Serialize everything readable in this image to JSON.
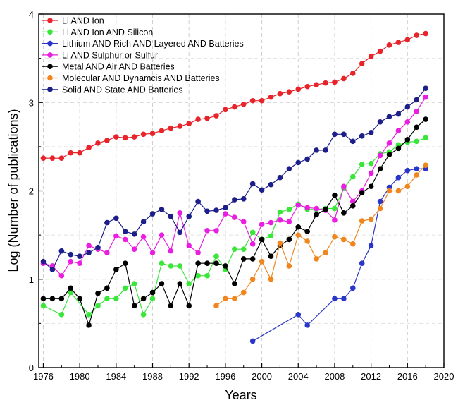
{
  "chart_data": {
    "type": "line",
    "title": "",
    "xlabel": "Years",
    "ylabel": "Log (Number of publications)",
    "xlim": [
      1975.5,
      2020
    ],
    "ylim": [
      0,
      4
    ],
    "x_ticks": [
      1976,
      1980,
      1984,
      1988,
      1992,
      1996,
      2000,
      2004,
      2008,
      2012,
      2016,
      2020
    ],
    "y_ticks": [
      0,
      1,
      2,
      3,
      4
    ],
    "grid": "dashed, both axes",
    "legend_position": "top-left",
    "series": [
      {
        "name": "Li AND Ion",
        "color": "#e8232a",
        "x": [
          1976,
          1977,
          1978,
          1979,
          1980,
          1981,
          1982,
          1983,
          1984,
          1985,
          1986,
          1987,
          1988,
          1989,
          1990,
          1991,
          1992,
          1993,
          1994,
          1995,
          1996,
          1997,
          1998,
          1999,
          2000,
          2001,
          2002,
          2003,
          2004,
          2005,
          2006,
          2007,
          2008,
          2009,
          2010,
          2011,
          2012,
          2013,
          2014,
          2015,
          2016,
          2017,
          2018
        ],
        "y": [
          2.37,
          2.37,
          2.37,
          2.43,
          2.43,
          2.49,
          2.54,
          2.57,
          2.61,
          2.6,
          2.61,
          2.64,
          2.65,
          2.68,
          2.71,
          2.73,
          2.76,
          2.81,
          2.82,
          2.85,
          2.92,
          2.95,
          2.98,
          3.02,
          3.02,
          3.06,
          3.1,
          3.12,
          3.15,
          3.18,
          3.2,
          3.22,
          3.23,
          3.27,
          3.33,
          3.44,
          3.52,
          3.58,
          3.65,
          3.68,
          3.71,
          3.76,
          3.78
        ]
      },
      {
        "name": "Li AND Ion AND Silicon",
        "color": "#39e639",
        "x": [
          1976,
          1978,
          1979,
          1981,
          1982,
          1983,
          1984,
          1985,
          1986,
          1987,
          1988,
          1989,
          1990,
          1991,
          1992,
          1993,
          1994,
          1995,
          1996,
          1997,
          1998,
          1999,
          2000,
          2001,
          2002,
          2003,
          2004,
          2005,
          2006,
          2007,
          2008,
          2009,
          2010,
          2011,
          2012,
          2013,
          2014,
          2015,
          2016,
          2017,
          2018
        ],
        "y": [
          0.7,
          0.6,
          0.85,
          0.6,
          0.7,
          0.78,
          0.78,
          0.9,
          0.95,
          0.6,
          0.78,
          1.18,
          1.15,
          1.15,
          0.95,
          1.04,
          1.04,
          1.26,
          1.11,
          1.34,
          1.34,
          1.53,
          1.45,
          1.49,
          1.76,
          1.79,
          1.85,
          1.79,
          1.79,
          1.8,
          1.8,
          2.03,
          2.16,
          2.3,
          2.31,
          2.42,
          2.44,
          2.52,
          2.55,
          2.56,
          2.6
        ]
      },
      {
        "name": "Lithium AND Rich AND Layered AND Batteries",
        "color": "#2a35c9",
        "x": [
          1999,
          2004,
          2005,
          2008,
          2009,
          2010,
          2011,
          2012,
          2013,
          2014,
          2015,
          2016,
          2017,
          2018
        ],
        "y": [
          0.3,
          0.6,
          0.48,
          0.78,
          0.78,
          0.9,
          1.18,
          1.38,
          1.88,
          2.04,
          2.15,
          2.23,
          2.25,
          2.25
        ]
      },
      {
        "name": "Li AND Sulphur or Sulfur",
        "color": "#ea1ee0",
        "x": [
          1976,
          1977,
          1978,
          1979,
          1980,
          1981,
          1982,
          1983,
          1984,
          1985,
          1986,
          1987,
          1988,
          1989,
          1990,
          1991,
          1992,
          1993,
          1994,
          1995,
          1996,
          1997,
          1998,
          1999,
          2000,
          2001,
          2002,
          2003,
          2004,
          2005,
          2006,
          2007,
          2008,
          2009,
          2010,
          2011,
          2012,
          2013,
          2014,
          2015,
          2016,
          2017,
          2018
        ],
        "y": [
          1.18,
          1.15,
          1.04,
          1.2,
          1.18,
          1.38,
          1.34,
          1.3,
          1.49,
          1.45,
          1.34,
          1.48,
          1.3,
          1.5,
          1.32,
          1.75,
          1.38,
          1.3,
          1.55,
          1.55,
          1.74,
          1.7,
          1.65,
          1.4,
          1.62,
          1.64,
          1.67,
          1.65,
          1.84,
          1.81,
          1.8,
          1.78,
          1.67,
          2.05,
          1.88,
          2.0,
          2.2,
          2.4,
          2.54,
          2.68,
          2.78,
          2.9,
          3.06
        ]
      },
      {
        "name": "Metal AND Air AND Batteries",
        "color": "#000000",
        "x": [
          1976,
          1977,
          1978,
          1979,
          1980,
          1981,
          1982,
          1983,
          1984,
          1985,
          1986,
          1987,
          1988,
          1989,
          1990,
          1991,
          1992,
          1993,
          1994,
          1995,
          1996,
          1997,
          1998,
          1999,
          2000,
          2001,
          2002,
          2003,
          2004,
          2005,
          2006,
          2007,
          2008,
          2009,
          2010,
          2011,
          2012,
          2013,
          2014,
          2015,
          2016,
          2017,
          2018
        ],
        "y": [
          0.78,
          0.78,
          0.78,
          0.9,
          0.78,
          0.48,
          0.84,
          0.9,
          1.11,
          1.18,
          0.7,
          0.78,
          0.85,
          0.95,
          0.7,
          0.95,
          0.7,
          1.18,
          1.18,
          1.18,
          1.15,
          0.95,
          1.23,
          1.23,
          1.45,
          1.26,
          1.38,
          1.45,
          1.59,
          1.54,
          1.73,
          1.79,
          1.95,
          1.75,
          1.83,
          1.98,
          2.05,
          2.25,
          2.41,
          2.48,
          2.58,
          2.72,
          2.81
        ]
      },
      {
        "name": "Molecular AND Dynamcis AND Batteries",
        "color": "#f0861e",
        "x": [
          1995,
          1996,
          1997,
          1998,
          1999,
          2000,
          2001,
          2002,
          2003,
          2004,
          2005,
          2006,
          2007,
          2008,
          2009,
          2010,
          2011,
          2012,
          2013,
          2014,
          2015,
          2016,
          2017,
          2018
        ],
        "y": [
          0.7,
          0.78,
          0.78,
          0.85,
          1.0,
          1.2,
          1.0,
          1.41,
          1.15,
          1.5,
          1.43,
          1.23,
          1.3,
          1.48,
          1.45,
          1.4,
          1.66,
          1.68,
          1.8,
          2.0,
          2.0,
          2.05,
          2.18,
          2.29
        ]
      },
      {
        "name": "Solid AND State AND Batteries",
        "color": "#1c1e8a",
        "x": [
          1976,
          1977,
          1978,
          1979,
          1980,
          1981,
          1982,
          1983,
          1984,
          1985,
          1986,
          1987,
          1988,
          1989,
          1990,
          1991,
          1992,
          1993,
          1994,
          1995,
          1996,
          1997,
          1998,
          1999,
          2000,
          2001,
          2002,
          2003,
          2004,
          2005,
          2006,
          2007,
          2008,
          2009,
          2010,
          2011,
          2012,
          2013,
          2014,
          2015,
          2016,
          2017,
          2018
        ],
        "y": [
          1.2,
          1.11,
          1.32,
          1.28,
          1.26,
          1.3,
          1.36,
          1.64,
          1.69,
          1.54,
          1.51,
          1.65,
          1.74,
          1.79,
          1.71,
          1.53,
          1.71,
          1.88,
          1.77,
          1.78,
          1.81,
          1.9,
          1.91,
          2.08,
          2.01,
          2.07,
          2.15,
          2.25,
          2.32,
          2.36,
          2.46,
          2.46,
          2.64,
          2.64,
          2.56,
          2.62,
          2.66,
          2.78,
          2.84,
          2.87,
          2.95,
          3.03,
          3.16
        ]
      }
    ]
  }
}
